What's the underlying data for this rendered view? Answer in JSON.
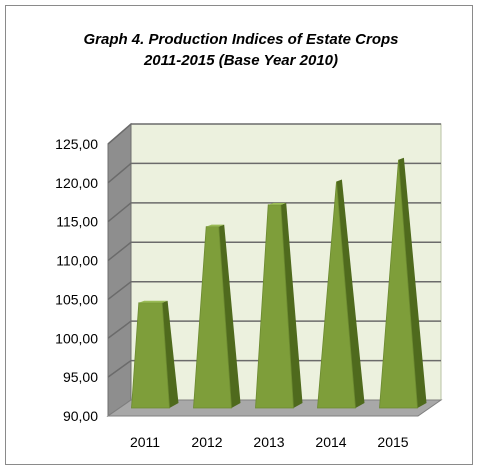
{
  "chart_data": {
    "type": "bar",
    "title_line1": "Graph 4. Production Indices of Estate Crops",
    "title_line2": "2011-2015 (Base Year 2010)",
    "categories": [
      "2011",
      "2012",
      "2013",
      "2014",
      "2015"
    ],
    "values": [
      103.8,
      113.6,
      116.4,
      119.4,
      122.2
    ],
    "ylim": [
      90,
      125
    ],
    "ytick_labels": [
      "90,00",
      "95,00",
      "100,00",
      "105,00",
      "110,00",
      "115,00",
      "120,00",
      "125,00"
    ],
    "ytick_values": [
      90,
      95,
      100,
      105,
      110,
      115,
      120,
      125
    ],
    "xlabel": "",
    "ylabel": "",
    "grid": true,
    "legend": "none",
    "colors": {
      "bar_front": "#7e9e3a",
      "bar_side": "#4f6a1d",
      "bar_top": "#9abb56",
      "back_wall": "#ecf1de",
      "side_wall": "#8e8e8e",
      "floor": "#a8a8a8",
      "grid": "#6b6b6b"
    }
  }
}
